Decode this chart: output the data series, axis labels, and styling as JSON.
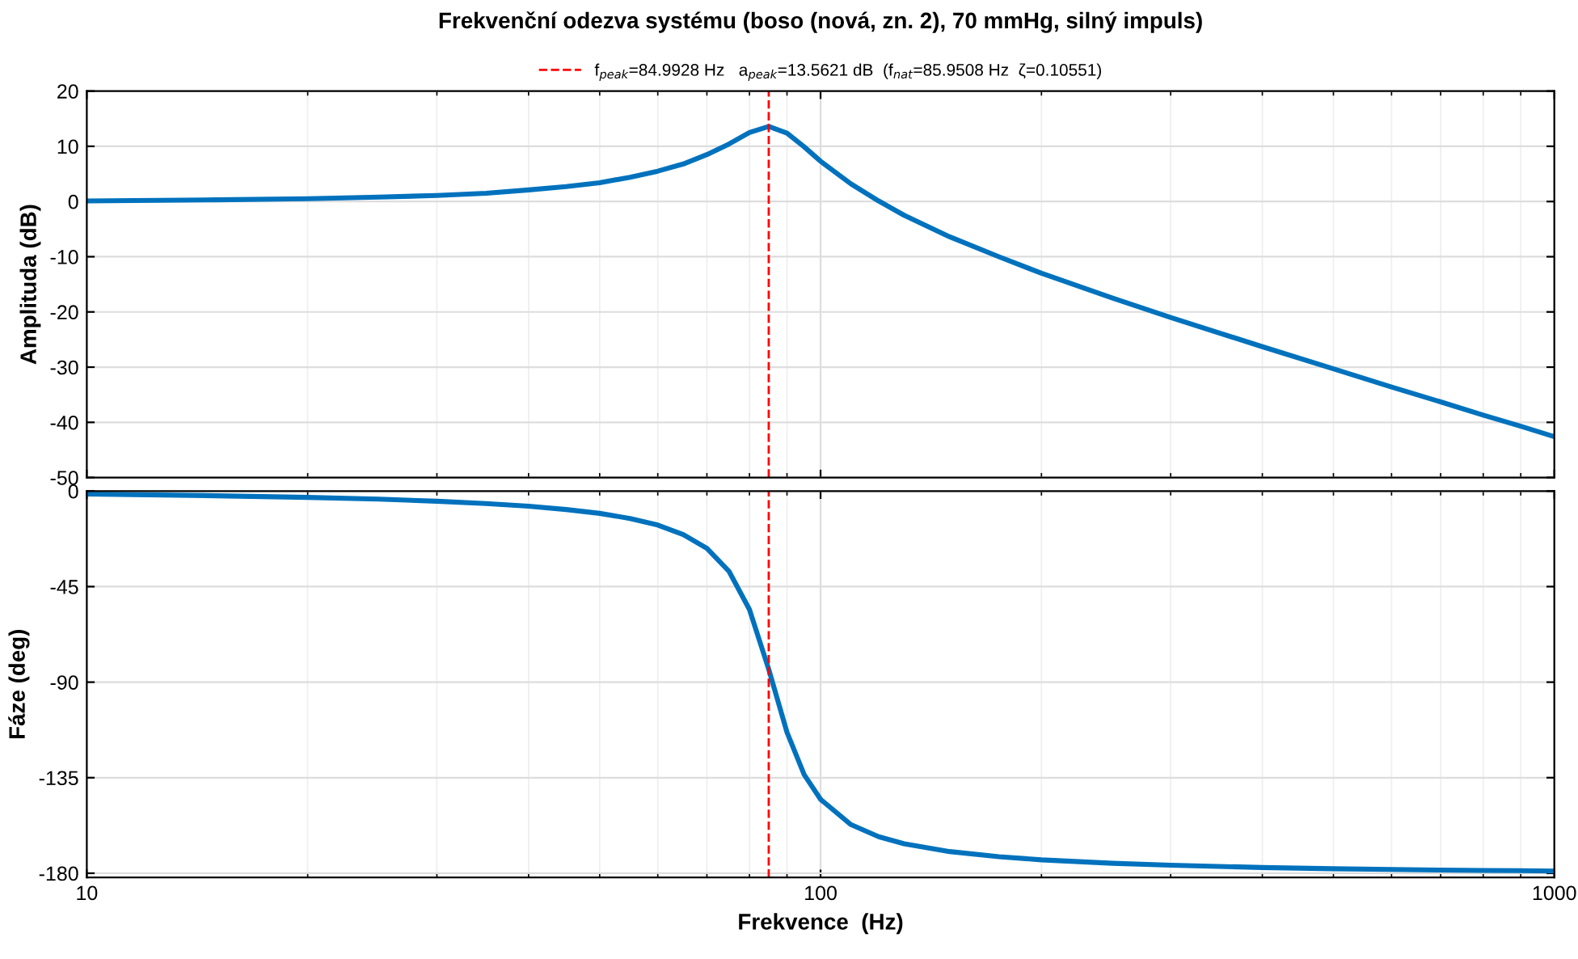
{
  "chart_data": [
    {
      "type": "line",
      "title": "Frekvenční odezva systému (boso (nová, zn. 2), 70 mmHg, silný impuls)",
      "ylabel": "Amplituda (dB)",
      "x": [
        10,
        15,
        20,
        25,
        30,
        35,
        40,
        45,
        50,
        55,
        60,
        65,
        70,
        75,
        80,
        85,
        90,
        95,
        100,
        110,
        120,
        130,
        150,
        175,
        200,
        250,
        300,
        400,
        500,
        600,
        700,
        800,
        900,
        1000
      ],
      "series": [
        {
          "color": "#0072bd",
          "values": [
            0.1,
            0.3,
            0.5,
            0.8,
            1.1,
            1.5,
            2.1,
            2.7,
            3.4,
            4.4,
            5.5,
            6.8,
            8.5,
            10.4,
            12.5,
            13.6,
            12.4,
            9.9,
            7.3,
            3.2,
            0.1,
            -2.5,
            -6.4,
            -10.0,
            -13.0,
            -17.5,
            -21.0,
            -26.3,
            -30.3,
            -33.6,
            -36.3,
            -38.7,
            -40.7,
            -42.6
          ]
        }
      ],
      "xlim": [
        10,
        1000
      ],
      "xticks": [
        10,
        100,
        1000
      ],
      "ylim": [
        -50,
        20
      ],
      "yticks": [
        -50,
        -40,
        -30,
        -20,
        -10,
        0,
        10,
        20
      ],
      "log": "x",
      "grid": true,
      "tick_labels": "y",
      "legend": "top",
      "ref_lines": [
        {
          "axis": "x",
          "value": 84.9928,
          "label": "f$_{peak}$=84.9928 Hz   a$_{peak}$=13.5621 dB  (f$_{nat}$=85.9508 Hz  ζ=0.10551)",
          "color": "#ff0000",
          "line_style": "dashed"
        }
      ]
    },
    {
      "type": "line",
      "xlabel": "Frekvence  (Hz)",
      "ylabel": "Fáze (deg)",
      "x": [
        10,
        15,
        20,
        25,
        30,
        35,
        40,
        45,
        50,
        55,
        60,
        65,
        70,
        75,
        80,
        85,
        90,
        95,
        100,
        110,
        120,
        130,
        150,
        175,
        200,
        250,
        300,
        400,
        500,
        600,
        700,
        800,
        900,
        1000
      ],
      "series": [
        {
          "color": "#0072bd",
          "values": [
            -1.4,
            -2.2,
            -3.0,
            -3.8,
            -4.8,
            -5.9,
            -7.1,
            -8.7,
            -10.5,
            -12.9,
            -16.0,
            -20.5,
            -27.0,
            -37.7,
            -55.8,
            -84.0,
            -113.6,
            -133.6,
            -145.2,
            -157.1,
            -162.8,
            -166.1,
            -169.8,
            -172.2,
            -173.7,
            -175.3,
            -176.2,
            -177.3,
            -177.9,
            -178.2,
            -178.5,
            -178.7,
            -178.8,
            -179.0
          ]
        }
      ],
      "xlim": [
        10,
        1000
      ],
      "xticks": [
        10,
        100,
        1000
      ],
      "ylim": [
        -182,
        0
      ],
      "yticks": [
        -180,
        -135,
        -90,
        -45,
        0
      ],
      "log": "x",
      "grid": true,
      "ref_lines": [
        {
          "axis": "x",
          "value": 84.9928,
          "color": "#ff0000",
          "line_style": "dashed"
        }
      ]
    }
  ]
}
